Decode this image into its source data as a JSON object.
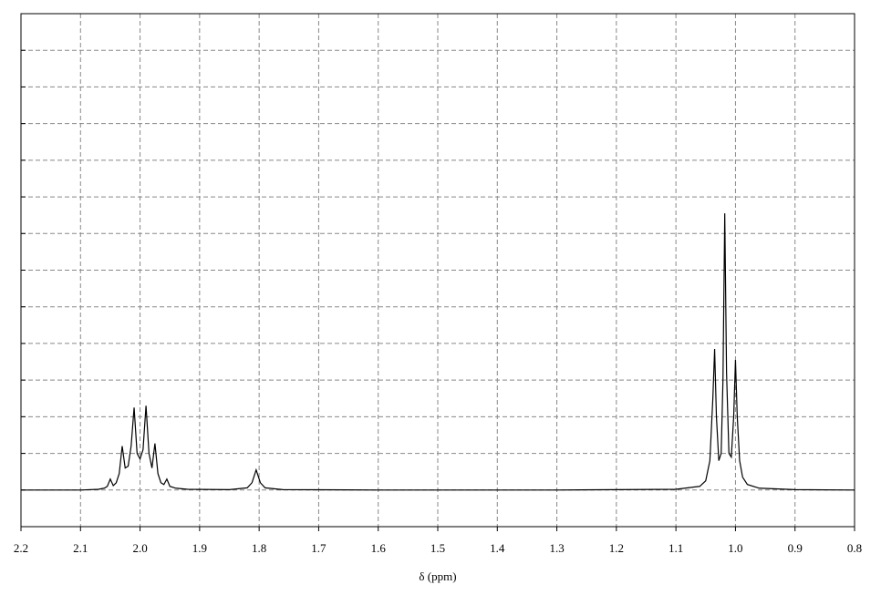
{
  "chart_data": {
    "type": "line",
    "x_label": "δ (ppm)",
    "xlim": [
      2.2,
      0.8
    ],
    "xticks": [
      2.2,
      2.1,
      {
        "value": 2,
        "label": "2.0"
      },
      1.9,
      1.8,
      1.7,
      1.6,
      1.5,
      1.4,
      1.3,
      1.2,
      1.1,
      {
        "value": 1,
        "label": "1.0"
      },
      0.9,
      0.8
    ],
    "ylim": [
      -1,
      13
    ],
    "yticks": [
      0,
      1,
      2,
      3,
      4,
      5,
      6,
      7,
      8,
      9,
      10,
      11,
      12
    ],
    "grid": true,
    "series": [
      {
        "color": "#000000",
        "x": [
          2.2,
          2.1,
          2.07,
          2.06,
          2.055,
          2.05,
          2.045,
          2.04,
          2.035,
          2.03,
          2.025,
          2.02,
          2.015,
          2.01,
          2.005,
          2.0,
          1.995,
          1.99,
          1.985,
          1.98,
          1.975,
          1.97,
          1.965,
          1.96,
          1.955,
          1.95,
          1.94,
          1.92,
          1.85,
          1.82,
          1.812,
          1.805,
          1.798,
          1.79,
          1.76,
          1.6,
          1.3,
          1.1,
          1.06,
          1.05,
          1.043,
          1.038,
          1.035,
          1.032,
          1.028,
          1.024,
          1.021,
          1.018,
          1.015,
          1.011,
          1.007,
          1.003,
          1.0,
          0.997,
          0.993,
          0.988,
          0.98,
          0.96,
          0.9,
          0.8
        ],
        "values": [
          0,
          0,
          0.02,
          0.05,
          0.1,
          0.3,
          0.12,
          0.2,
          0.45,
          1.2,
          0.6,
          0.65,
          1.2,
          2.25,
          1.0,
          0.85,
          1.1,
          2.3,
          1.0,
          0.6,
          1.27,
          0.45,
          0.2,
          0.15,
          0.3,
          0.1,
          0.05,
          0.02,
          0.01,
          0.06,
          0.2,
          0.55,
          0.2,
          0.06,
          0.01,
          0,
          0,
          0.02,
          0.1,
          0.25,
          0.8,
          2.5,
          3.85,
          2.0,
          0.8,
          1.0,
          3.0,
          7.55,
          3.2,
          1.0,
          0.9,
          2.0,
          3.55,
          2.0,
          0.8,
          0.35,
          0.15,
          0.05,
          0.01,
          0
        ]
      }
    ]
  }
}
